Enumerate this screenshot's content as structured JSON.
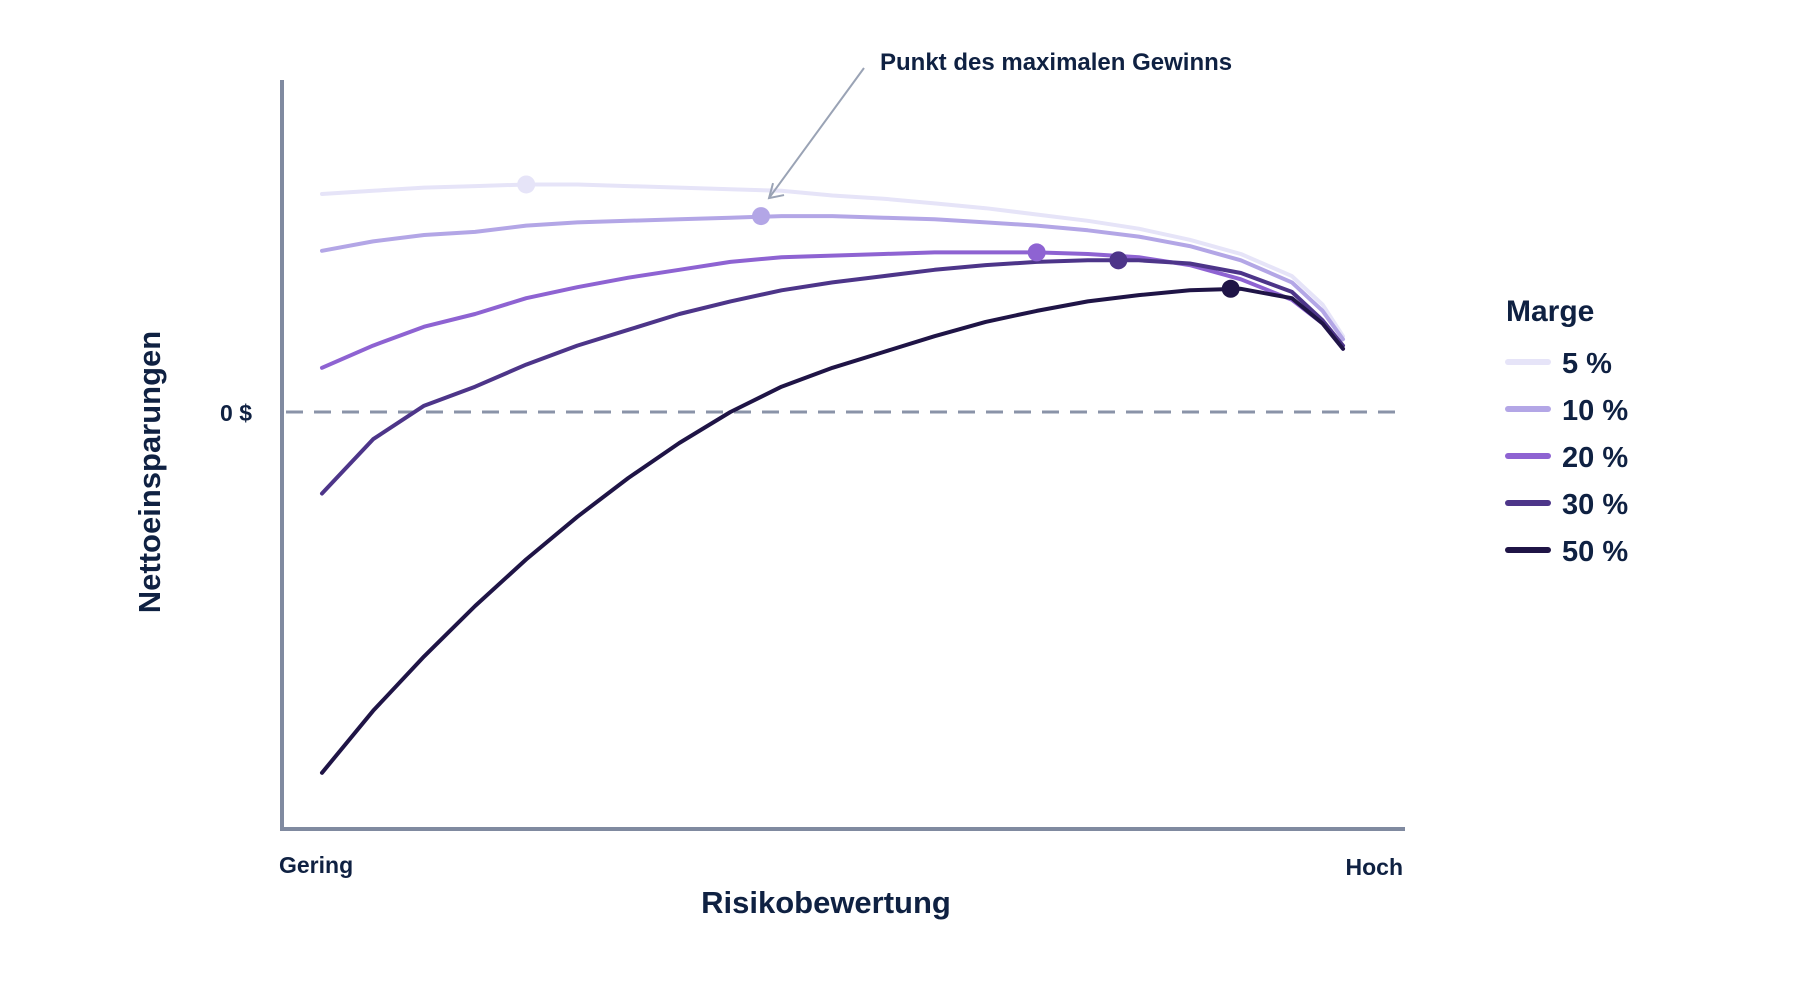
{
  "chart_data": {
    "type": "line",
    "xlabel": "Risikobewertung",
    "ylabel": "Nettoeinsparungen",
    "x_tick_labels": {
      "low": "Gering",
      "high": "Hoch"
    },
    "reference_line": {
      "y": 0,
      "label": "0 $",
      "style": "dashed",
      "color": "#8a93a8"
    },
    "xlim": [
      0,
      100
    ],
    "ylim": [
      -100,
      100
    ],
    "legend": {
      "title": "Marge",
      "position": "right"
    },
    "annotation": {
      "text": "Punkt des maximalen Gewinns"
    },
    "x": [
      0,
      5,
      10,
      15,
      20,
      25,
      30,
      35,
      40,
      45,
      50,
      55,
      60,
      65,
      70,
      75,
      80,
      85,
      90,
      95,
      98,
      100
    ],
    "series": [
      {
        "name": "5 %",
        "color": "#e6e4f8",
        "values": [
          69,
          70,
          71,
          71.5,
          72,
          72,
          71.5,
          71,
          70.5,
          70,
          68.5,
          67.5,
          66,
          64.5,
          62.5,
          60.5,
          58,
          54.5,
          50,
          43,
          34,
          24
        ],
        "max_point": {
          "x": 20,
          "y": 72
        }
      },
      {
        "name": "10 %",
        "color": "#b3a6e6",
        "values": [
          51,
          54,
          56,
          57,
          59,
          60,
          60.5,
          61,
          61.5,
          62,
          62,
          61.5,
          61,
          60,
          59,
          57.5,
          55.5,
          52.5,
          48,
          41,
          32,
          23
        ],
        "max_point": {
          "x": 43,
          "y": 62
        }
      },
      {
        "name": "20 %",
        "color": "#8e63d2",
        "values": [
          14,
          21,
          27,
          31,
          36,
          39.5,
          42.5,
          45,
          47.5,
          49,
          49.5,
          50,
          50.5,
          50.5,
          50.5,
          50,
          49,
          46.5,
          42,
          35.5,
          28,
          20
        ],
        "max_point": {
          "x": 70,
          "y": 50.5
        }
      },
      {
        "name": "30 %",
        "color": "#4d3589",
        "values": [
          -21,
          -7,
          2,
          8,
          15,
          21,
          26,
          31,
          35,
          38.5,
          41,
          43,
          45,
          46.5,
          47.5,
          48,
          48,
          47,
          44,
          38,
          29,
          21
        ],
        "max_point": {
          "x": 78,
          "y": 48
        }
      },
      {
        "name": "50 %",
        "color": "#1f1446",
        "values": [
          -93,
          -77,
          -63,
          -50,
          -38,
          -27,
          -17,
          -8,
          0,
          8,
          14,
          19,
          24,
          28.5,
          32,
          35,
          37,
          38.5,
          39,
          36,
          28,
          20
        ],
        "max_point": {
          "x": 89,
          "y": 39
        }
      }
    ]
  }
}
